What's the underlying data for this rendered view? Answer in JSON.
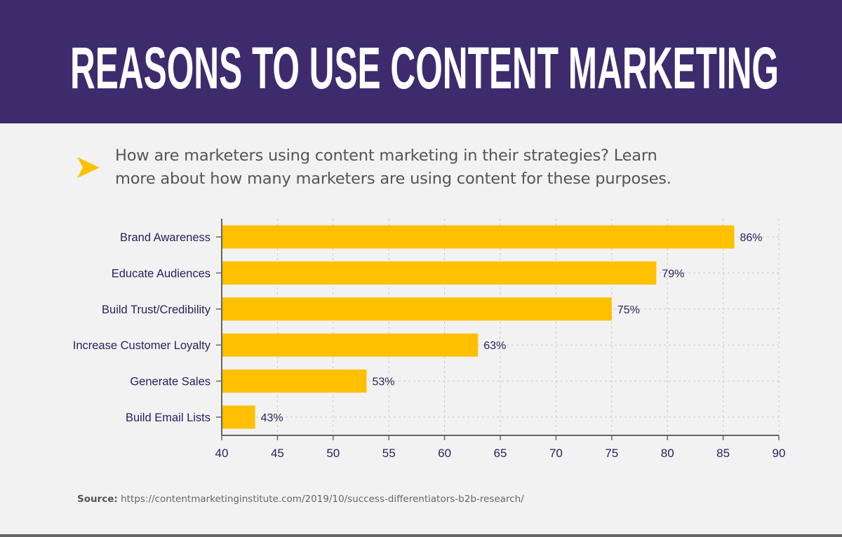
{
  "header": {
    "title": "REASONS TO USE CONTENT MARKETING"
  },
  "intro": {
    "text": "How are marketers using content marketing in their strategies? Learn more about how many marketers are using content for these purposes.",
    "icon": "arrow-right-icon"
  },
  "colors": {
    "header_bg": "#3d2b6e",
    "bar": "#ffc000",
    "text_dark": "#2a1f5c",
    "background": "#f2f2f2"
  },
  "chart_data": {
    "type": "bar",
    "orientation": "horizontal",
    "categories": [
      "Brand Awareness",
      "Educate Audiences",
      "Build Trust/Credibility",
      "Increase Customer Loyalty",
      "Generate Sales",
      "Build Email Lists"
    ],
    "values": [
      86,
      79,
      75,
      63,
      53,
      43
    ],
    "data_labels": [
      "86%",
      "79%",
      "75%",
      "63%",
      "53%",
      "43%"
    ],
    "xlim": [
      40,
      90
    ],
    "xticks": [
      "40",
      "45",
      "50",
      "55",
      "60",
      "65",
      "70",
      "75",
      "80",
      "85",
      "90"
    ],
    "grid": true,
    "xlabel": "",
    "ylabel": ""
  },
  "source": {
    "label": "Source:",
    "url": "https://contentmarketinginstitute.com/2019/10/success-differentiators-b2b-research/"
  }
}
